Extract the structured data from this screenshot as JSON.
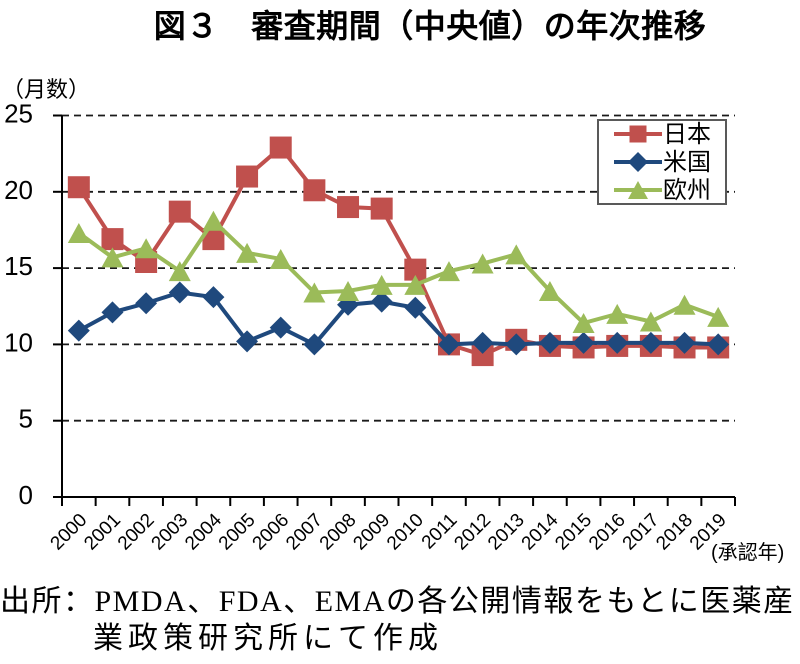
{
  "figure": {
    "title": "図３　審査期間（中央値）の年次推移",
    "y_unit_label": "（月数）",
    "x_unit_label": "(承認年)",
    "source_line1": "出所：PMDA、FDA、EMAの各公開情報をもとに医薬産",
    "source_line2": "業政策研究所にて作成"
  },
  "chart_data": {
    "type": "line",
    "title": "図３　審査期間（中央値）の年次推移",
    "ylabel": "（月数）",
    "xlabel": "(承認年)",
    "ylim": [
      0,
      25
    ],
    "ytick_step": 5,
    "grid": "dashed-horizontal",
    "legend_position": "top-right",
    "categories": [
      "2000",
      "2001",
      "2002",
      "2003",
      "2004",
      "2005",
      "2006",
      "2007",
      "2008",
      "2009",
      "2010",
      "2011",
      "2012",
      "2013",
      "2014",
      "2015",
      "2016",
      "2017",
      "2018",
      "2019"
    ],
    "series": [
      {
        "name": "日本",
        "color": "#C0504D",
        "marker": "square",
        "values": [
          20.3,
          16.9,
          15.4,
          18.7,
          16.9,
          21.0,
          22.9,
          20.1,
          19.0,
          18.9,
          14.9,
          10.0,
          9.3,
          10.3,
          9.9,
          9.8,
          9.9,
          9.9,
          9.8,
          9.8
        ]
      },
      {
        "name": "米国",
        "color": "#1F497D",
        "marker": "diamond",
        "values": [
          10.9,
          12.1,
          12.7,
          13.4,
          13.1,
          10.2,
          11.1,
          10.0,
          12.6,
          12.8,
          12.4,
          10.0,
          10.1,
          10.0,
          10.1,
          10.1,
          10.1,
          10.1,
          10.1,
          10.0
        ]
      },
      {
        "name": "欧州",
        "color": "#9BBB59",
        "marker": "triangle",
        "values": [
          17.3,
          15.7,
          16.3,
          14.8,
          18.1,
          16.0,
          15.6,
          13.4,
          13.5,
          13.9,
          13.9,
          14.8,
          15.3,
          15.9,
          13.5,
          11.4,
          12.0,
          11.5,
          12.6,
          11.8
        ]
      }
    ]
  }
}
